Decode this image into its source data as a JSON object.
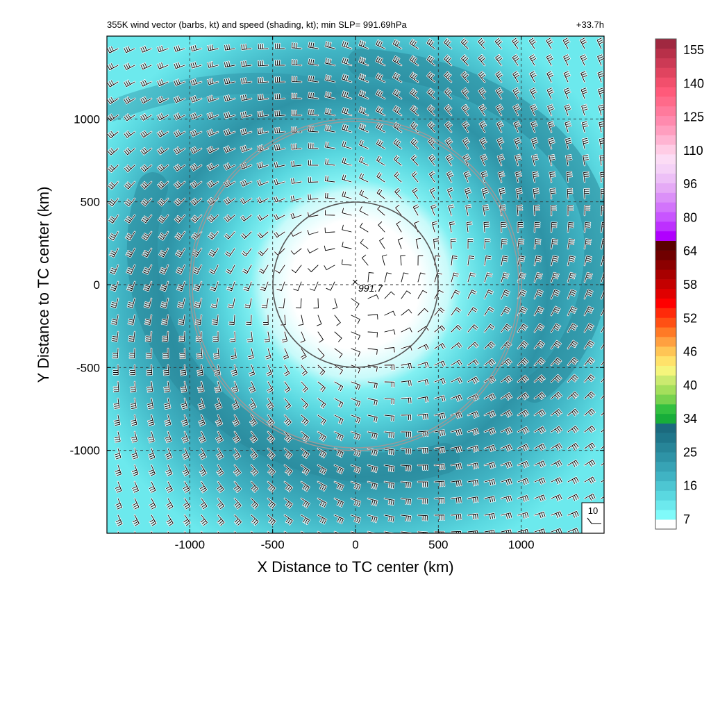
{
  "chart_data": {
    "type": "heatmap",
    "title": "355K wind vector (barbs, kt) and speed (shading, kt); min SLP= 991.69hPa",
    "time_label": "+33.7h",
    "xlabel": "X Distance to TC center (km)",
    "ylabel": "Y Distance to TC center (km)",
    "xlim": [
      -1500,
      1500
    ],
    "ylim": [
      -1500,
      1500
    ],
    "x_ticks": [
      -1000,
      -500,
      0,
      500,
      1000
    ],
    "y_ticks": [
      -1000,
      -500,
      0,
      500,
      1000
    ],
    "x_tick_labels": [
      "-1000",
      "-500",
      "0",
      "500",
      "1000"
    ],
    "y_tick_labels": [
      "-1000",
      "-500",
      "0",
      "500",
      "1000"
    ],
    "grid": "dashed",
    "center_marker": {
      "symbol": "×",
      "label": "991.7",
      "x": 0,
      "y": 0
    },
    "range_circles_km": [
      500,
      1000
    ],
    "reference_barb": {
      "label": "10",
      "units": "kt"
    },
    "colorbar": {
      "labels": [
        "7",
        "16",
        "25",
        "34",
        "40",
        "46",
        "52",
        "58",
        "64",
        "80",
        "96",
        "110",
        "125",
        "140",
        "155"
      ],
      "colors": [
        "#ffffff",
        "#80fafa",
        "#6ce9ed",
        "#5ad8e0",
        "#4dc6d2",
        "#40b3c3",
        "#37a3b5",
        "#2e93a6",
        "#278598",
        "#1f768a",
        "#1b6a7e",
        "#18ad3a",
        "#33c040",
        "#77d24e",
        "#a4df5c",
        "#cbea70",
        "#f5f57c",
        "#ffe26a",
        "#ffc555",
        "#ffa040",
        "#ff7a26",
        "#ff5014",
        "#ff2a0a",
        "#ff0000",
        "#e00000",
        "#c40000",
        "#a80000",
        "#8c0000",
        "#700000",
        "#5a0000",
        "#b000ff",
        "#bd30ff",
        "#c855ff",
        "#d274fb",
        "#db90f8",
        "#e5aaf6",
        "#edc0f7",
        "#f5d2f7",
        "#fcdcf5",
        "#ffcce5",
        "#ffb4d2",
        "#ff9ebf",
        "#ff8aae",
        "#ff7a9c",
        "#ff6a8a",
        "#ff5a7a",
        "#f24f6c",
        "#e0445f",
        "#cc3a55",
        "#b83049",
        "#a02840"
      ]
    }
  }
}
